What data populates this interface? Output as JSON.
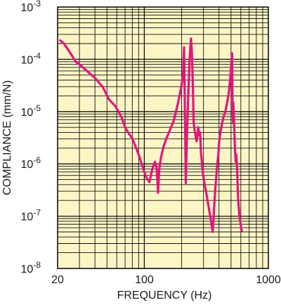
{
  "chart_data": {
    "type": "line",
    "title": "",
    "xlabel": "FREQUENCY (Hz)",
    "ylabel": "COMPLIANCE (mm/N)",
    "x_scale": "log",
    "y_scale": "log",
    "xlim": [
      20,
      1000
    ],
    "ylim": [
      1e-08,
      0.001
    ],
    "x_tick_labels": [
      {
        "value": 20,
        "label": "20"
      },
      {
        "value": 100,
        "label": "100"
      },
      {
        "value": 1000,
        "label": "1000"
      }
    ],
    "y_tick_labels": [
      {
        "value": 0.001,
        "mantissa": "10",
        "exponent": "-3"
      },
      {
        "value": 0.0001,
        "mantissa": "10",
        "exponent": "-4"
      },
      {
        "value": 1e-05,
        "mantissa": "10",
        "exponent": "-5"
      },
      {
        "value": 1e-06,
        "mantissa": "10",
        "exponent": "-6"
      },
      {
        "value": 1e-07,
        "mantissa": "10",
        "exponent": "-7"
      },
      {
        "value": 1e-08,
        "mantissa": "10",
        "exponent": "-8"
      }
    ],
    "grid": true,
    "background_color": "#fcf5c6",
    "grid_color": "#111111",
    "line_color": "#e3157e",
    "series": [
      {
        "x": [
          21,
          22.5,
          24,
          26,
          28,
          31,
          35,
          40,
          46,
          52,
          58,
          62,
          66,
          70,
          75,
          80,
          86,
          92,
          98,
          104,
          110,
          116,
          122,
          126,
          129,
          132,
          136,
          142,
          150,
          160,
          172,
          185,
          198,
          205,
          209,
          212,
          216,
          220,
          226,
          232,
          238,
          242,
          246,
          250,
          256,
          264,
          272,
          278,
          282,
          286,
          290,
          296,
          304,
          314,
          326,
          340,
          356,
          372,
          388,
          396,
          400,
          406,
          414,
          424,
          436,
          450,
          466,
          480,
          492,
          502,
          510,
          515,
          518,
          522,
          528,
          534,
          540,
          546,
          552,
          560,
          570,
          584,
          598,
          606,
          612
        ],
        "y": [
          0.00023,
          0.0002,
          0.00016,
          0.00012,
          9e-05,
          7.5e-05,
          5.8e-05,
          4.4e-05,
          3e-05,
          1.7e-05,
          1.3e-05,
          1e-05,
          7.5e-06,
          5e-06,
          3.8e-06,
          3.1e-06,
          2e-06,
          1.3e-06,
          8e-07,
          5.5e-07,
          4.5e-07,
          8e-07,
          1.1e-06,
          8e-07,
          2.8e-07,
          8e-07,
          1.3e-06,
          2e-06,
          3e-06,
          4.3e-06,
          6.5e-06,
          1.3e-05,
          2.8e-05,
          5e-05,
          0.00017,
          2e-05,
          4.3e-07,
          2.8e-06,
          2e-05,
          0.00011,
          0.00025,
          0.00013,
          3.3e-05,
          6e-06,
          4e-06,
          2.7e-06,
          5e-06,
          3.5e-06,
          4e-06,
          1.7e-06,
          1.2e-06,
          7e-07,
          4.5e-07,
          3e-07,
          1.8e-07,
          1e-07,
          5e-08,
          3e-07,
          1e-06,
          1.6e-06,
          2.5e-06,
          3.3e-06,
          4.5e-06,
          6e-06,
          8e-06,
          1e-05,
          1.5e-05,
          2.3e-05,
          4e-05,
          8e-05,
          0.00013,
          1e-05,
          6e-06,
          1.5e-05,
          8e-06,
          3.2e-06,
          1.6e-06,
          1.1e-06,
          1.5e-06,
          8e-07,
          2.2e-07,
          1e-07,
          7e-08,
          5.5e-08,
          5.3e-08
        ]
      }
    ]
  }
}
